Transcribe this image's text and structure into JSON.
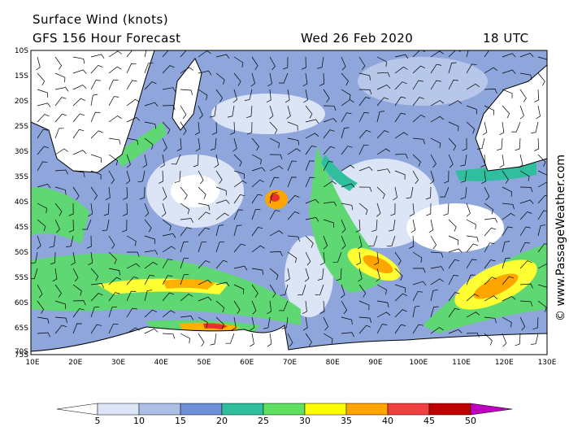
{
  "header": {
    "title": "Surface Wind (knots)",
    "subtitle": "GFS 156 Hour Forecast",
    "date": "Wed 26 Feb 2020",
    "time": "18 UTC"
  },
  "map": {
    "latitude_labels": [
      "10S",
      "15S",
      "20S",
      "25S",
      "30S",
      "35S",
      "40S",
      "45S",
      "50S",
      "55S",
      "60S",
      "65S",
      "70S",
      "75S"
    ],
    "longitude_labels": [
      "10E",
      "20E",
      "30E",
      "40E",
      "50E",
      "60E",
      "70E",
      "80E",
      "90E",
      "100E",
      "110E",
      "120E",
      "130E"
    ]
  },
  "legend": {
    "labels": [
      5,
      10,
      15,
      20,
      25,
      30,
      35,
      40,
      45,
      50
    ]
  },
  "watermark": "© www.PassageWeather.com"
}
